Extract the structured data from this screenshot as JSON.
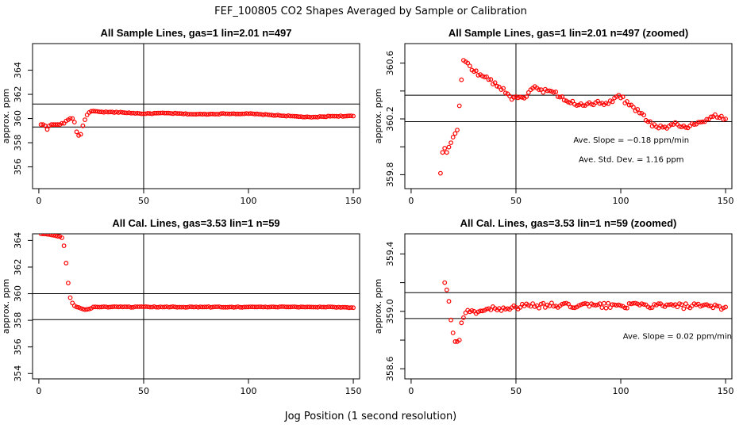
{
  "title": "FEF_100805  CO2 Shapes Averaged by Sample or Calibration",
  "xlabel": "Jog Position (1 second resolution)",
  "marker_color": "#ff0000",
  "chart_data": [
    {
      "type": "scatter",
      "title": "All Sample Lines, gas=1 lin=2.01 n=497",
      "ylabel": "approx. ppm",
      "xlim": [
        -3,
        153
      ],
      "ylim": [
        354.2,
        366.2
      ],
      "xticks": [
        0,
        50,
        100,
        150
      ],
      "yticks": [
        356,
        358,
        360,
        362,
        364
      ],
      "hlines": [
        361.2,
        359.3
      ],
      "vlines": [
        50
      ],
      "annotations": [],
      "anchors": [
        [
          1,
          359.5
        ],
        [
          2,
          359.5
        ],
        [
          3,
          359.4
        ],
        [
          4,
          359.1
        ],
        [
          5,
          359.4
        ],
        [
          6,
          359.5
        ],
        [
          7,
          359.5
        ],
        [
          8,
          359.5
        ],
        [
          9,
          359.5
        ],
        [
          10,
          359.5
        ],
        [
          11,
          359.6
        ],
        [
          12,
          359.6
        ],
        [
          13,
          359.8
        ],
        [
          14,
          359.9
        ],
        [
          15,
          360.0
        ],
        [
          16,
          360.0
        ],
        [
          17,
          359.7
        ],
        [
          18,
          358.9
        ],
        [
          19,
          358.6
        ],
        [
          20,
          358.7
        ],
        [
          21,
          359.4
        ],
        [
          22,
          359.9
        ],
        [
          23,
          360.3
        ],
        [
          24,
          360.5
        ],
        [
          25,
          360.6
        ],
        [
          27,
          360.6
        ],
        [
          30,
          360.55
        ],
        [
          40,
          360.5
        ],
        [
          50,
          360.4
        ],
        [
          60,
          360.45
        ],
        [
          75,
          360.35
        ],
        [
          90,
          360.4
        ],
        [
          100,
          360.4
        ],
        [
          110,
          360.3
        ],
        [
          120,
          360.2
        ],
        [
          130,
          360.1
        ],
        [
          140,
          360.2
        ],
        [
          150,
          360.2
        ]
      ],
      "x": [],
      "y": []
    },
    {
      "type": "scatter",
      "title": "All Sample Lines, gas=1 lin=2.01 n=497 (zoomed)",
      "ylabel": "approx. ppm",
      "xlim": [
        -3,
        153
      ],
      "ylim": [
        359.7,
        360.74
      ],
      "xticks": [
        0,
        50,
        100,
        150
      ],
      "yticks": [
        359.8,
        360.0,
        360.2,
        360.4,
        360.6
      ],
      "ytick_labels": [
        "359.8",
        "",
        "360.2",
        "",
        "360.6"
      ],
      "hlines": [
        360.37,
        360.18
      ],
      "vlines": [
        50
      ],
      "annotations": [
        {
          "text": "Ave. Slope =  −0.18  ppm/min",
          "x": 105,
          "y": 360.03
        },
        {
          "text": "Ave. Std. Dev. =  1.16  ppm",
          "x": 105,
          "y": 359.89
        }
      ],
      "anchors": [
        [
          14,
          359.81
        ],
        [
          15,
          359.96
        ],
        [
          16,
          359.99
        ],
        [
          17,
          359.96
        ],
        [
          22,
          360.12
        ],
        [
          24,
          360.48
        ],
        [
          25,
          360.62
        ],
        [
          26,
          360.61
        ],
        [
          27,
          360.6
        ],
        [
          28,
          360.58
        ],
        [
          30,
          360.54
        ],
        [
          35,
          360.5
        ],
        [
          40,
          360.46
        ],
        [
          43,
          360.41
        ],
        [
          46,
          360.38
        ],
        [
          48,
          360.34
        ],
        [
          50,
          360.36
        ],
        [
          55,
          360.36
        ],
        [
          58,
          360.42
        ],
        [
          62,
          360.41
        ],
        [
          68,
          360.39
        ],
        [
          72,
          360.36
        ],
        [
          75,
          360.32
        ],
        [
          80,
          360.3
        ],
        [
          90,
          360.31
        ],
        [
          95,
          360.33
        ],
        [
          98,
          360.36
        ],
        [
          100,
          360.35
        ],
        [
          105,
          360.3
        ],
        [
          110,
          360.24
        ],
        [
          113,
          360.18
        ],
        [
          116,
          360.16
        ],
        [
          120,
          360.14
        ],
        [
          125,
          360.16
        ],
        [
          130,
          360.15
        ],
        [
          135,
          360.16
        ],
        [
          140,
          360.18
        ],
        [
          145,
          360.23
        ],
        [
          148,
          360.22
        ],
        [
          150,
          360.2
        ]
      ],
      "x": [],
      "y": []
    },
    {
      "type": "scatter",
      "title": "All Cal. Lines, gas=3.53 lin=1 n=59",
      "ylabel": "approx. ppm",
      "xlim": [
        -3,
        153
      ],
      "ylim": [
        353.6,
        364.5
      ],
      "xticks": [
        0,
        50,
        100,
        150
      ],
      "yticks": [
        354,
        356,
        358,
        360,
        362,
        364
      ],
      "hlines": [
        360.0,
        358.05
      ],
      "vlines": [
        50
      ],
      "annotations": [],
      "anchors": [
        [
          1,
          364.5
        ],
        [
          5,
          364.45
        ],
        [
          8,
          364.35
        ],
        [
          10,
          364.3
        ],
        [
          11,
          364.2
        ],
        [
          12,
          363.6
        ],
        [
          13,
          362.3
        ],
        [
          14,
          360.8
        ],
        [
          15,
          359.7
        ],
        [
          16,
          359.3
        ],
        [
          17,
          359.1
        ],
        [
          18,
          359.0
        ],
        [
          20,
          358.9
        ],
        [
          22,
          358.8
        ],
        [
          24,
          358.85
        ],
        [
          26,
          359.0
        ],
        [
          30,
          359.0
        ],
        [
          40,
          359.0
        ],
        [
          60,
          359.0
        ],
        [
          80,
          359.0
        ],
        [
          100,
          359.0
        ],
        [
          120,
          359.0
        ],
        [
          140,
          359.0
        ],
        [
          150,
          358.95
        ]
      ],
      "x": [],
      "y": []
    },
    {
      "type": "scatter",
      "title": "All Cal. Lines, gas=3.53 lin=1 n=59 (zoomed)",
      "ylabel": "approx. ppm",
      "xlim": [
        -3,
        153
      ],
      "ylim": [
        358.53,
        359.54
      ],
      "xticks": [
        0,
        50,
        100,
        150
      ],
      "yticks": [
        358.6,
        358.8,
        359.0,
        359.2,
        359.4
      ],
      "ytick_labels": [
        "358.6",
        "",
        "359.0",
        "",
        "359.4"
      ],
      "hlines": [
        359.13,
        358.95
      ],
      "vlines": [
        50
      ],
      "annotations": [
        {
          "text": "Ave. Slope =  0.02  ppm/min",
          "x": 127,
          "y": 358.81
        }
      ],
      "anchors": [
        [
          16,
          359.2
        ],
        [
          17,
          359.15
        ],
        [
          18,
          359.07
        ],
        [
          19,
          358.94
        ],
        [
          20,
          358.85
        ],
        [
          21,
          358.79
        ],
        [
          22,
          358.79
        ],
        [
          23,
          358.8
        ],
        [
          24,
          358.92
        ],
        [
          26,
          358.99
        ],
        [
          30,
          359.0
        ],
        [
          40,
          359.02
        ],
        [
          60,
          359.04
        ],
        [
          80,
          359.04
        ],
        [
          100,
          359.04
        ],
        [
          120,
          359.04
        ],
        [
          150,
          359.03
        ]
      ],
      "x": [],
      "y": []
    }
  ]
}
